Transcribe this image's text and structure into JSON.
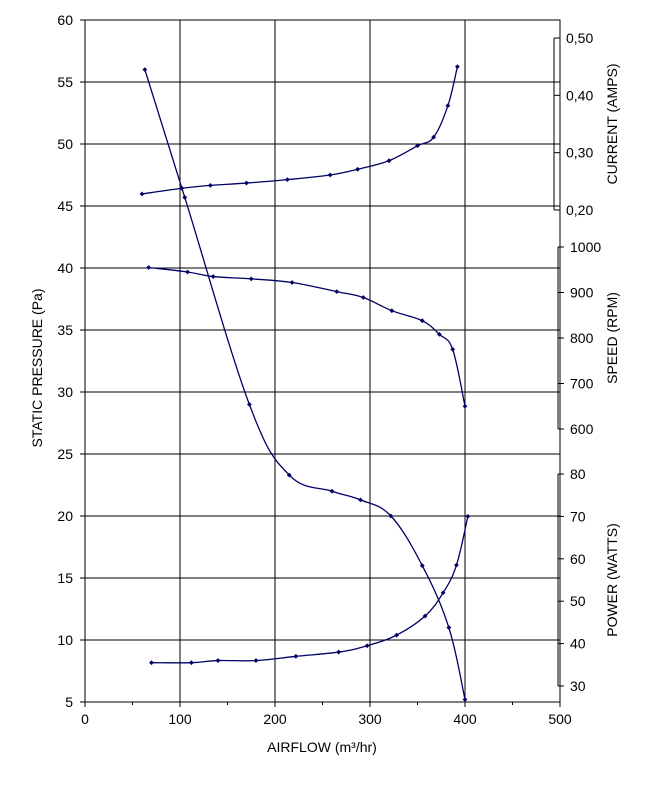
{
  "chart_data": {
    "type": "line",
    "title": "",
    "xlabel": "AIRFLOW (m³/hr)",
    "ylabel": "STATIC PRESSURE (Pa)",
    "xlim": [
      0,
      500
    ],
    "ylim": [
      5,
      60
    ],
    "x_ticks": [
      "0",
      "100",
      "200",
      "300",
      "400",
      "500"
    ],
    "y_ticks": [
      "5",
      "10",
      "15",
      "20",
      "25",
      "30",
      "35",
      "40",
      "45",
      "50",
      "55",
      "60"
    ],
    "grid": true,
    "right_axes": [
      {
        "label": "CURRENT (AMPS)",
        "range": [
          0.2,
          0.5
        ],
        "ticks": [
          "0,20",
          "0,30",
          "0,40",
          "0,50"
        ]
      },
      {
        "label": "SPEED (RPM)",
        "range": [
          600,
          1000
        ],
        "ticks": [
          "600",
          "700",
          "800",
          "900",
          "1000"
        ]
      },
      {
        "label": "POWER (WATTS)",
        "range": [
          30,
          80
        ],
        "ticks": [
          "30",
          "40",
          "50",
          "60",
          "70",
          "80"
        ]
      }
    ],
    "series": [
      {
        "axis": "pressure",
        "color": "#000066",
        "x": [
          63,
          105,
          173,
          215,
          260,
          290,
          322,
          355,
          383,
          400
        ],
        "y": [
          56,
          45.7,
          29,
          23.3,
          22,
          21.3,
          20,
          16,
          11,
          5.2
        ]
      },
      {
        "axis": "current",
        "color": "#000066",
        "x": [
          60,
          102,
          132,
          170,
          213,
          258,
          287,
          320,
          350,
          367,
          382,
          392
        ],
        "y": [
          0.228,
          0.238,
          0.243,
          0.247,
          0.253,
          0.261,
          0.271,
          0.286,
          0.312,
          0.327,
          0.382,
          0.45
        ]
      },
      {
        "axis": "speed",
        "color": "#000066",
        "x": [
          67,
          108,
          135,
          175,
          218,
          265,
          293,
          323,
          355,
          373,
          387,
          400
        ],
        "y": [
          955,
          945,
          935,
          930,
          922,
          902,
          889,
          860,
          838,
          808,
          775,
          650
        ]
      },
      {
        "axis": "power",
        "color": "#000066",
        "x": [
          70,
          112,
          140,
          180,
          222,
          267,
          297,
          328,
          358,
          377,
          391,
          403
        ],
        "y": [
          35.5,
          35.5,
          36,
          36,
          37,
          38,
          39.5,
          42,
          46.5,
          52,
          58.5,
          70
        ]
      }
    ]
  }
}
